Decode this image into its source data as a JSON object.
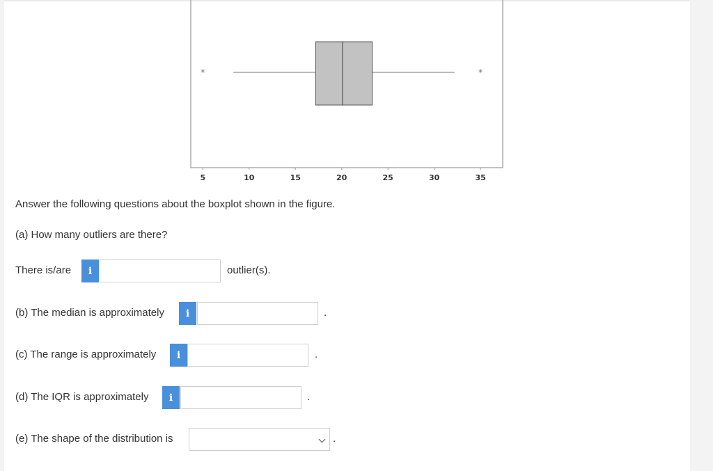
{
  "chart_data": {
    "type": "boxplot",
    "x_ticks": [
      "5",
      "10",
      "15",
      "20",
      "25",
      "30",
      "35"
    ],
    "xlim": [
      3.7,
      37.4
    ],
    "box": {
      "whisker_low": 8.3,
      "q1": 17.2,
      "median": 20.1,
      "q3": 23.3,
      "whisker_high": 32.2
    },
    "outliers": [
      5,
      35
    ],
    "colors": {
      "box_fill": "#c2c2c2",
      "box_stroke": "#555555",
      "whisker": "#777777",
      "frame": "#999999",
      "outlier": "#777777"
    }
  },
  "instructions": "Answer the following questions about the boxplot shown in the figure.",
  "questions": {
    "a": {
      "prompt": "(a) How many outliers are there?",
      "lead": "There is/are",
      "suffix": "outlier(s).",
      "value": ""
    },
    "b": {
      "prompt": "(b) The median is approximately",
      "suffix": ".",
      "value": ""
    },
    "c": {
      "prompt": "(c) The range is approximately",
      "suffix": ".",
      "value": ""
    },
    "d": {
      "prompt": "(d) The IQR is approximately",
      "suffix": ".",
      "value": ""
    },
    "e": {
      "prompt": "(e) The shape of the distribution is",
      "suffix": ".",
      "selected": ""
    }
  },
  "info_icon_glyph": "i"
}
